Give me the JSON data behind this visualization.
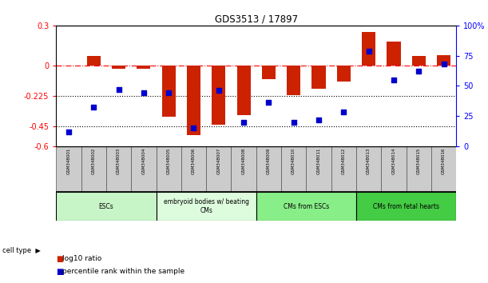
{
  "title": "GDS3513 / 17897",
  "samples": [
    "GSM348001",
    "GSM348002",
    "GSM348003",
    "GSM348004",
    "GSM348005",
    "GSM348006",
    "GSM348007",
    "GSM348008",
    "GSM348009",
    "GSM348010",
    "GSM348011",
    "GSM348012",
    "GSM348013",
    "GSM348014",
    "GSM348015",
    "GSM348016"
  ],
  "log10_ratio": [
    0.0,
    0.07,
    -0.02,
    -0.02,
    -0.38,
    -0.52,
    -0.44,
    -0.37,
    -0.1,
    -0.22,
    -0.17,
    -0.12,
    0.25,
    0.18,
    0.07,
    0.08
  ],
  "percentile_rank": [
    12,
    32,
    47,
    44,
    44,
    15,
    46,
    20,
    36,
    20,
    22,
    28,
    79,
    55,
    62,
    68
  ],
  "cell_types": [
    {
      "label": "ESCs",
      "start": 0,
      "end": 3,
      "color": "#c8f5c8"
    },
    {
      "label": "embryoid bodies w/ beating\nCMs",
      "start": 4,
      "end": 7,
      "color": "#ddfcdd"
    },
    {
      "label": "CMs from ESCs",
      "start": 8,
      "end": 11,
      "color": "#88ee88"
    },
    {
      "label": "CMs from fetal hearts",
      "start": 12,
      "end": 15,
      "color": "#44cc44"
    }
  ],
  "bar_color": "#cc2200",
  "dot_color": "#0000cc",
  "left_ylim": [
    -0.6,
    0.3
  ],
  "right_ylim": [
    0,
    100
  ],
  "left_yticks": [
    0.3,
    0.0,
    -0.225,
    -0.45,
    -0.6
  ],
  "left_yticklabels": [
    "0.3",
    "0",
    "-0.225",
    "-0.45",
    "-0.6"
  ],
  "right_yticks": [
    100,
    75,
    50,
    25,
    0
  ],
  "right_yticklabels": [
    "100%",
    "75",
    "50",
    "25",
    "0"
  ],
  "hline_y": 0,
  "dotted_lines": [
    -0.225,
    -0.45
  ],
  "background_color": "#ffffff",
  "bar_width": 0.55,
  "dot_size": 25
}
